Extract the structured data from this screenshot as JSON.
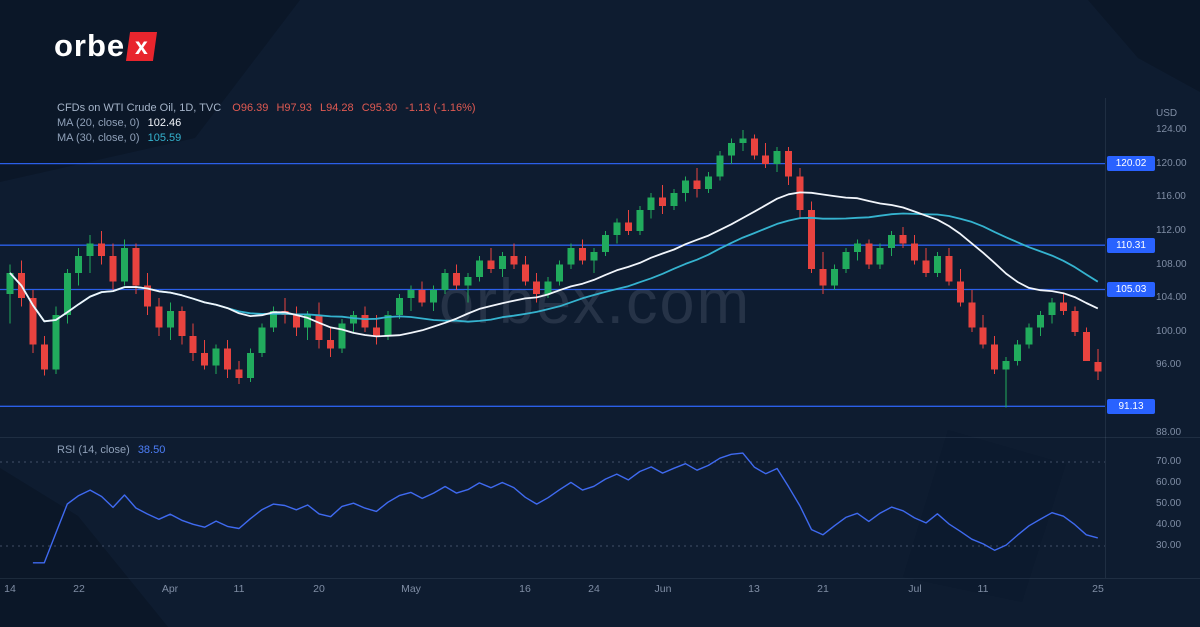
{
  "logo": {
    "prefix": "orbe",
    "suffix": "x",
    "accent": "#e8252d"
  },
  "watermark": "orbex.com",
  "legend": {
    "title": "CFDs on WTI Crude Oil, 1D, TVC",
    "ohlc": {
      "o": "O96.39",
      "h": "H97.93",
      "l": "L94.28",
      "c": "C95.30",
      "change": "-1.13 (-1.16%)"
    },
    "ma20_label": "MA (20, close, 0)",
    "ma20_value": "102.46",
    "ma30_label": "MA (30, close, 0)",
    "ma30_value": "105.59",
    "rsi_label": "RSI (14, close)",
    "rsi_value": "38.50"
  },
  "price_axis": {
    "currency": "USD",
    "ticks": [
      "124.00",
      "120.00",
      "116.00",
      "112.00",
      "108.00",
      "104.00",
      "100.00",
      "96.00",
      "88.00"
    ],
    "tick_values": [
      124,
      120,
      116,
      112,
      108,
      104,
      100,
      96,
      88
    ]
  },
  "rsi_axis": {
    "ticks": [
      "70.00",
      "60.00",
      "50.00",
      "40.00",
      "30.00"
    ],
    "tick_values": [
      70,
      60,
      50,
      40,
      30
    ]
  },
  "time_axis": [
    {
      "label": "14",
      "i": 0
    },
    {
      "label": "22",
      "i": 6
    },
    {
      "label": "Apr",
      "i": 14
    },
    {
      "label": "11",
      "i": 20
    },
    {
      "label": "20",
      "i": 27
    },
    {
      "label": "May",
      "i": 35
    },
    {
      "label": "16",
      "i": 45
    },
    {
      "label": "24",
      "i": 51
    },
    {
      "label": "Jun",
      "i": 57
    },
    {
      "label": "13",
      "i": 65
    },
    {
      "label": "21",
      "i": 71
    },
    {
      "label": "Jul",
      "i": 79
    },
    {
      "label": "11",
      "i": 85
    },
    {
      "label": "25",
      "i": 95
    }
  ],
  "chart_data": {
    "type": "candlestick",
    "title": "CFDs on WTI Crude Oil, 1D, TVC",
    "symbol": "WTI Crude Oil CFD",
    "interval": "1D",
    "exchange": "TVC",
    "last": {
      "open": 96.39,
      "high": 97.93,
      "low": 94.28,
      "close": 95.3,
      "change": "-1.13 (-1.16%)"
    },
    "ylim": [
      87.7,
      127.0
    ],
    "levels": [
      120.02,
      110.31,
      105.03,
      91.13
    ],
    "overlays": [
      {
        "name": "MA20",
        "type": "sma",
        "period": 20,
        "color": "#f1f5fb",
        "last": 102.46
      },
      {
        "name": "MA30",
        "type": "sma",
        "period": 30,
        "color": "#35b3cf",
        "last": 105.59
      }
    ],
    "rsi": {
      "period": 14,
      "last": 38.5,
      "bands": [
        70,
        30
      ],
      "range": [
        30,
        70
      ],
      "color": "#3f6af0"
    },
    "colors": {
      "up": "#21ab5d",
      "down": "#e8433f",
      "level_line": "#2b5fe8",
      "level_tag_bg": "#2962ff"
    },
    "candles": [
      [
        104.5,
        108.0,
        101.0,
        107.0
      ],
      [
        107.0,
        108.5,
        103.0,
        104.0
      ],
      [
        104.0,
        105.0,
        97.5,
        98.5
      ],
      [
        98.5,
        99.5,
        94.8,
        95.5
      ],
      [
        95.5,
        103.0,
        95.0,
        102.0
      ],
      [
        102.0,
        107.5,
        101.0,
        107.0
      ],
      [
        107.0,
        110.0,
        105.5,
        109.0
      ],
      [
        109.0,
        111.5,
        107.0,
        110.5
      ],
      [
        110.5,
        112.0,
        108.0,
        109.0
      ],
      [
        109.0,
        110.5,
        105.0,
        106.0
      ],
      [
        106.0,
        111.0,
        105.5,
        110.0
      ],
      [
        110.0,
        110.5,
        104.5,
        105.5
      ],
      [
        105.5,
        107.0,
        102.0,
        103.0
      ],
      [
        103.0,
        104.0,
        99.5,
        100.5
      ],
      [
        100.5,
        103.5,
        99.0,
        102.5
      ],
      [
        102.5,
        103.0,
        98.5,
        99.5
      ],
      [
        99.5,
        101.0,
        96.5,
        97.5
      ],
      [
        97.5,
        99.0,
        95.5,
        96.0
      ],
      [
        96.0,
        98.5,
        95.0,
        98.0
      ],
      [
        98.0,
        99.0,
        94.5,
        95.5
      ],
      [
        95.5,
        96.5,
        93.8,
        94.5
      ],
      [
        94.5,
        98.0,
        94.0,
        97.5
      ],
      [
        97.5,
        101.0,
        97.0,
        100.5
      ],
      [
        100.5,
        103.0,
        100.0,
        102.5
      ],
      [
        102.5,
        104.0,
        101.0,
        102.0
      ],
      [
        102.0,
        103.0,
        99.5,
        100.5
      ],
      [
        100.5,
        102.5,
        99.0,
        102.0
      ],
      [
        102.0,
        103.5,
        98.0,
        99.0
      ],
      [
        99.0,
        100.5,
        97.0,
        98.0
      ],
      [
        98.0,
        101.5,
        97.5,
        101.0
      ],
      [
        101.0,
        102.5,
        100.0,
        102.0
      ],
      [
        102.0,
        103.0,
        100.0,
        100.5
      ],
      [
        100.5,
        102.0,
        98.5,
        99.5
      ],
      [
        99.5,
        102.5,
        99.0,
        102.0
      ],
      [
        102.0,
        104.5,
        101.5,
        104.0
      ],
      [
        104.0,
        105.5,
        102.5,
        105.0
      ],
      [
        105.0,
        106.0,
        103.0,
        103.5
      ],
      [
        103.5,
        105.5,
        102.5,
        105.0
      ],
      [
        105.0,
        107.5,
        104.5,
        107.0
      ],
      [
        107.0,
        108.0,
        105.0,
        105.5
      ],
      [
        105.5,
        107.0,
        103.5,
        106.5
      ],
      [
        106.5,
        109.0,
        106.0,
        108.5
      ],
      [
        108.5,
        110.0,
        107.0,
        107.5
      ],
      [
        107.5,
        109.5,
        106.5,
        109.0
      ],
      [
        109.0,
        110.5,
        107.5,
        108.0
      ],
      [
        108.0,
        109.0,
        105.5,
        106.0
      ],
      [
        106.0,
        107.0,
        103.5,
        104.5
      ],
      [
        104.5,
        106.5,
        104.0,
        106.0
      ],
      [
        106.0,
        108.5,
        105.5,
        108.0
      ],
      [
        108.0,
        110.5,
        107.5,
        110.0
      ],
      [
        110.0,
        111.0,
        108.0,
        108.5
      ],
      [
        108.5,
        110.0,
        107.0,
        109.5
      ],
      [
        109.5,
        112.0,
        109.0,
        111.5
      ],
      [
        111.5,
        113.5,
        110.5,
        113.0
      ],
      [
        113.0,
        114.5,
        111.5,
        112.0
      ],
      [
        112.0,
        115.0,
        111.5,
        114.5
      ],
      [
        114.5,
        116.5,
        113.5,
        116.0
      ],
      [
        116.0,
        117.5,
        114.0,
        115.0
      ],
      [
        115.0,
        117.0,
        114.5,
        116.5
      ],
      [
        116.5,
        118.5,
        115.5,
        118.0
      ],
      [
        118.0,
        119.5,
        116.0,
        117.0
      ],
      [
        117.0,
        119.0,
        116.5,
        118.5
      ],
      [
        118.5,
        121.5,
        118.0,
        121.0
      ],
      [
        121.0,
        123.0,
        120.0,
        122.5
      ],
      [
        122.5,
        124.0,
        121.5,
        123.0
      ],
      [
        123.0,
        123.5,
        120.5,
        121.0
      ],
      [
        121.0,
        122.5,
        119.5,
        120.0
      ],
      [
        120.0,
        122.0,
        119.0,
        121.5
      ],
      [
        121.5,
        122.0,
        117.5,
        118.5
      ],
      [
        118.5,
        119.5,
        113.5,
        114.5
      ],
      [
        114.5,
        115.5,
        107.0,
        107.5
      ],
      [
        107.5,
        109.5,
        104.5,
        105.5
      ],
      [
        105.5,
        108.0,
        105.0,
        107.5
      ],
      [
        107.5,
        110.0,
        107.0,
        109.5
      ],
      [
        109.5,
        111.0,
        108.5,
        110.5
      ],
      [
        110.5,
        111.0,
        107.5,
        108.0
      ],
      [
        108.0,
        110.5,
        107.5,
        110.0
      ],
      [
        110.0,
        112.0,
        109.0,
        111.5
      ],
      [
        111.5,
        112.5,
        110.0,
        110.5
      ],
      [
        110.5,
        111.5,
        108.0,
        108.5
      ],
      [
        108.5,
        110.0,
        106.5,
        107.0
      ],
      [
        107.0,
        109.5,
        106.5,
        109.0
      ],
      [
        109.0,
        110.0,
        105.5,
        106.0
      ],
      [
        106.0,
        107.5,
        103.0,
        103.5
      ],
      [
        103.5,
        105.0,
        100.0,
        100.5
      ],
      [
        100.5,
        102.0,
        98.0,
        98.5
      ],
      [
        98.5,
        99.5,
        95.0,
        95.5
      ],
      [
        95.5,
        97.0,
        91.0,
        96.5
      ],
      [
        96.5,
        99.0,
        96.0,
        98.5
      ],
      [
        98.5,
        101.0,
        98.0,
        100.5
      ],
      [
        100.5,
        102.5,
        99.5,
        102.0
      ],
      [
        102.0,
        104.0,
        101.0,
        103.5
      ],
      [
        103.5,
        104.5,
        102.0,
        102.5
      ],
      [
        102.5,
        103.0,
        99.5,
        100.0
      ],
      [
        100.0,
        100.5,
        96.5,
        96.5
      ],
      [
        96.39,
        97.93,
        94.28,
        95.3
      ]
    ]
  }
}
